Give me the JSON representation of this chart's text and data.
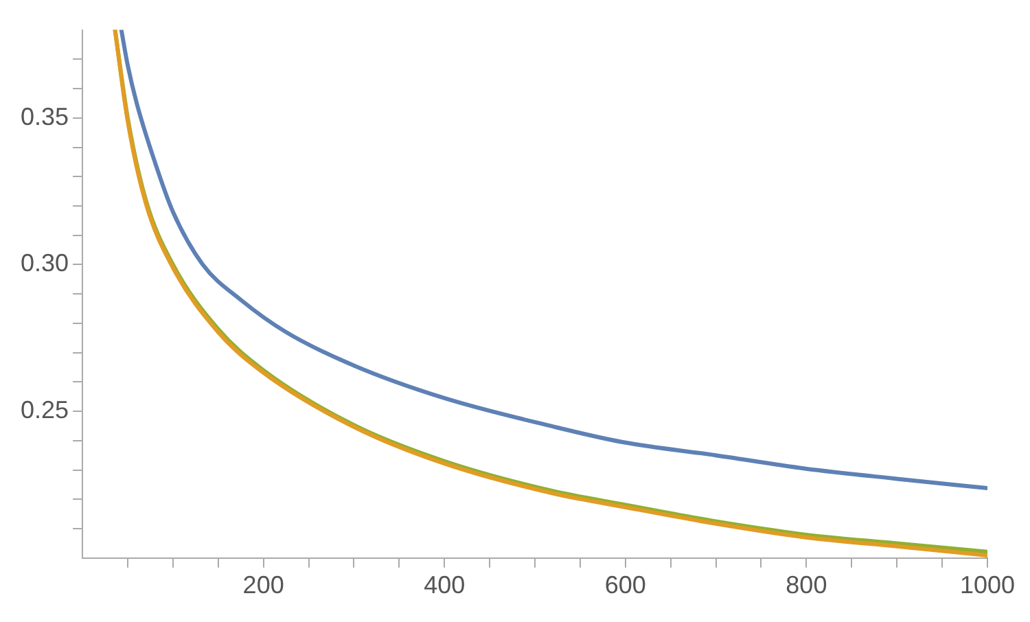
{
  "chart_data": {
    "type": "line",
    "xlim": [
      0,
      1000
    ],
    "ylim": [
      0.2,
      0.38
    ],
    "xticks": [
      {
        "value": 50,
        "label": null
      },
      {
        "value": 100,
        "label": null
      },
      {
        "value": 150,
        "label": null
      },
      200,
      {
        "value": 250,
        "label": null
      },
      {
        "value": 300,
        "label": null
      },
      {
        "value": 350,
        "label": null
      },
      400,
      {
        "value": 450,
        "label": null
      },
      {
        "value": 500,
        "label": null
      },
      {
        "value": 550,
        "label": null
      },
      600,
      {
        "value": 650,
        "label": null
      },
      {
        "value": 700,
        "label": null
      },
      {
        "value": 750,
        "label": null
      },
      800,
      {
        "value": 850,
        "label": null
      },
      {
        "value": 900,
        "label": null
      },
      {
        "value": 950,
        "label": null
      },
      1000
    ],
    "yticks": [
      {
        "value": 0.21,
        "label": null
      },
      {
        "value": 0.22,
        "label": null
      },
      {
        "value": 0.23,
        "label": null
      },
      {
        "value": 0.24,
        "label": null
      },
      {
        "value": 0.25,
        "label": "0.25"
      },
      {
        "value": 0.26,
        "label": null
      },
      {
        "value": 0.27,
        "label": null
      },
      {
        "value": 0.28,
        "label": null
      },
      {
        "value": 0.29,
        "label": null
      },
      {
        "value": 0.3,
        "label": "0.30"
      },
      {
        "value": 0.31,
        "label": null
      },
      {
        "value": 0.32,
        "label": null
      },
      {
        "value": 0.33,
        "label": null
      },
      {
        "value": 0.34,
        "label": null
      },
      {
        "value": 0.35,
        "label": "0.35"
      },
      {
        "value": 0.36,
        "label": null
      },
      {
        "value": 0.37,
        "label": null
      }
    ],
    "grid": false,
    "legend": false,
    "marker": "none",
    "line_style": "solid",
    "series": [
      {
        "color": "#5e81b5",
        "x": [
          43,
          50,
          60,
          80,
          100,
          133,
          175,
          225,
          300,
          400,
          519,
          597,
          700,
          798,
          900,
          1000
        ],
        "values": [
          0.38,
          0.368,
          0.355,
          0.335,
          0.318,
          0.3,
          0.288,
          0.277,
          0.2656,
          0.2545,
          0.2449,
          0.2395,
          0.235,
          0.2305,
          0.227,
          0.2238
        ]
      },
      {
        "color": "#e19c24",
        "x": [
          36,
          50,
          70,
          100,
          150,
          200,
          300,
          400,
          519,
          597,
          700,
          798,
          900,
          1000
        ],
        "values": [
          0.38,
          0.349,
          0.321,
          0.299,
          0.277,
          0.2632,
          0.2447,
          0.2322,
          0.2221,
          0.2175,
          0.2117,
          0.2071,
          0.204,
          0.2009
        ]
      },
      {
        "color": "#8fb032",
        "x": [
          36,
          50,
          70,
          100,
          150,
          200,
          300,
          400,
          519,
          597,
          700,
          798,
          900,
          1000
        ],
        "values": [
          0.38,
          0.35,
          0.322,
          0.3,
          0.278,
          0.264,
          0.2453,
          0.233,
          0.2229,
          0.2183,
          0.2125,
          0.208,
          0.205,
          0.2021
        ]
      }
    ]
  }
}
